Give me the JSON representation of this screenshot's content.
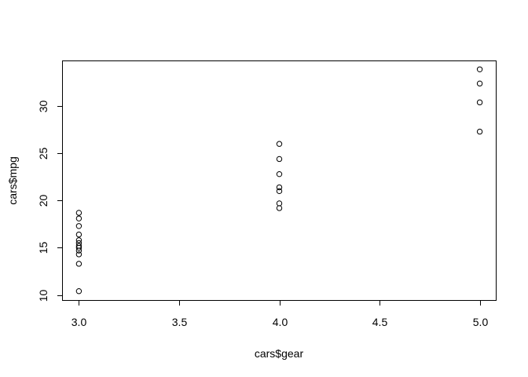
{
  "chart_data": {
    "type": "scatter",
    "title": "",
    "xlabel": "cars$gear",
    "ylabel": "cars$mpg",
    "xlim": [
      2.92,
      5.08
    ],
    "ylim": [
      9.46,
      34.84
    ],
    "xticks": [
      3.0,
      3.5,
      4.0,
      4.5,
      5.0
    ],
    "xtick_labels": [
      "3.0",
      "3.5",
      "4.0",
      "4.5",
      "5.0"
    ],
    "yticks": [
      10,
      15,
      20,
      25,
      30
    ],
    "ytick_labels": [
      "10",
      "15",
      "20",
      "25",
      "30"
    ],
    "grid": false,
    "legend": "none",
    "points": [
      {
        "x": 3,
        "y": 10.4
      },
      {
        "x": 3,
        "y": 13.3
      },
      {
        "x": 3,
        "y": 14.3
      },
      {
        "x": 3,
        "y": 14.7
      },
      {
        "x": 3,
        "y": 15.0
      },
      {
        "x": 3,
        "y": 15.2
      },
      {
        "x": 3,
        "y": 15.5
      },
      {
        "x": 3,
        "y": 15.8
      },
      {
        "x": 3,
        "y": 16.4
      },
      {
        "x": 3,
        "y": 17.3
      },
      {
        "x": 3,
        "y": 18.1
      },
      {
        "x": 3,
        "y": 18.7
      },
      {
        "x": 4,
        "y": 19.2
      },
      {
        "x": 4,
        "y": 19.7
      },
      {
        "x": 4,
        "y": 21.0
      },
      {
        "x": 4,
        "y": 21.4
      },
      {
        "x": 4,
        "y": 22.8
      },
      {
        "x": 4,
        "y": 24.4
      },
      {
        "x": 4,
        "y": 26.0
      },
      {
        "x": 5,
        "y": 27.3
      },
      {
        "x": 5,
        "y": 30.4
      },
      {
        "x": 5,
        "y": 32.4
      },
      {
        "x": 5,
        "y": 33.9
      }
    ]
  }
}
